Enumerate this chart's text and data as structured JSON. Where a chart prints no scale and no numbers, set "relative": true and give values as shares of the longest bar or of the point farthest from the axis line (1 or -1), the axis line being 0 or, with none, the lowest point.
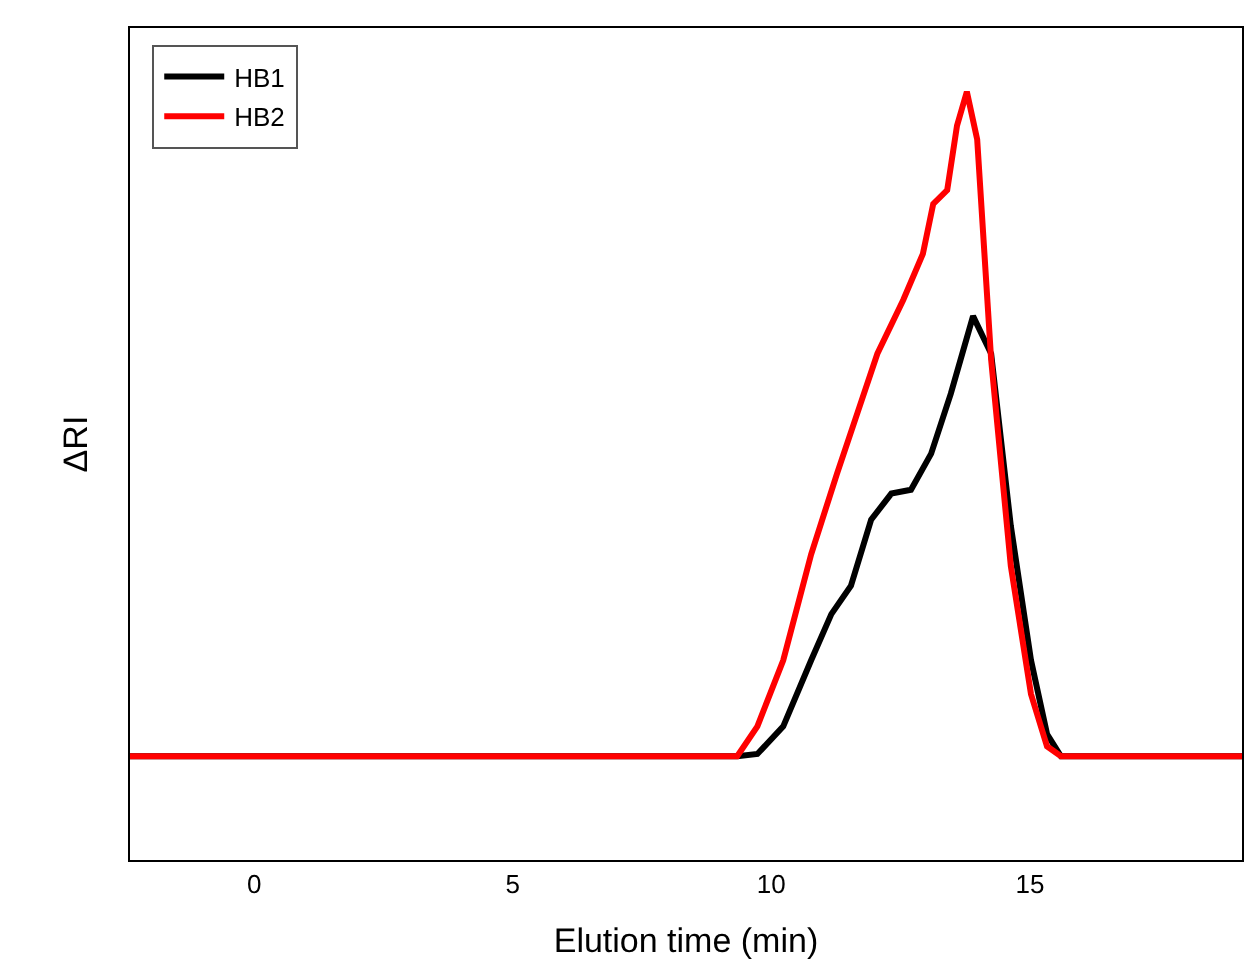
{
  "chart_data": {
    "type": "line",
    "xlabel": "Elution time (min)",
    "ylabel": "ΔRI",
    "relative": true,
    "xlim": [
      -2.4,
      19.1
    ],
    "xticks": [
      0,
      5,
      10,
      15
    ],
    "legend": "top left",
    "marker": "none",
    "line_style": "solid",
    "series": [
      {
        "name": "HB1",
        "color": "#000000",
        "x": [
          -2.4,
          9.34,
          9.73,
          10.23,
          10.77,
          11.16,
          11.54,
          11.93,
          12.32,
          12.7,
          13.09,
          13.47,
          13.9,
          14.25,
          14.63,
          15.02,
          15.33,
          15.6,
          19.1
        ],
        "values": [
          0.135,
          0.135,
          0.138,
          0.174,
          0.26,
          0.32,
          0.357,
          0.443,
          0.477,
          0.482,
          0.529,
          0.607,
          0.708,
          0.659,
          0.435,
          0.26,
          0.164,
          0.135,
          0.135
        ]
      },
      {
        "name": "HB2",
        "color": "#ff0000",
        "x": [
          -2.4,
          9.34,
          9.73,
          10.23,
          10.77,
          11.27,
          11.66,
          12.05,
          12.55,
          12.93,
          13.13,
          13.4,
          13.59,
          13.78,
          13.98,
          14.25,
          14.63,
          15.02,
          15.33,
          15.6,
          19.1
        ],
        "values": [
          0.135,
          0.135,
          0.174,
          0.26,
          0.398,
          0.503,
          0.581,
          0.659,
          0.729,
          0.789,
          0.854,
          0.872,
          0.956,
          1.0,
          0.938,
          0.651,
          0.383,
          0.216,
          0.148,
          0.135,
          0.135
        ]
      }
    ]
  }
}
